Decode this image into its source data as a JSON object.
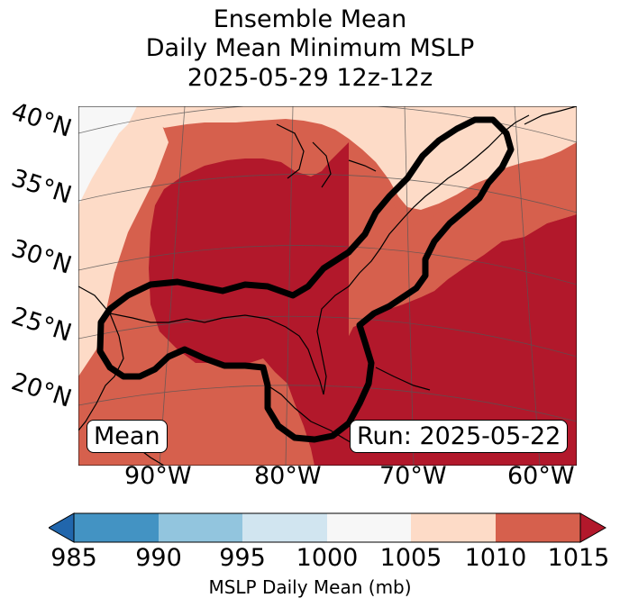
{
  "title": {
    "line1": "Ensemble Mean",
    "line2": "Daily Mean Minimum MSLP",
    "line3": "2025-05-29 12z-12z"
  },
  "map": {
    "latitude_labels": [
      "40°N",
      "35°N",
      "30°N",
      "25°N",
      "20°N"
    ],
    "longitude_labels": [
      "90°W",
      "80°W",
      "70°W",
      "60°W"
    ],
    "mean_box": "Mean",
    "run_box": "Run: 2025-05-22",
    "colors": {
      "lt1005": "#f7f7f7",
      "c1005_1010": "#fddbc7",
      "c1010_1015": "#d6604d",
      "gt1015": "#b2182b"
    }
  },
  "colorbar": {
    "label": "MSLP Daily Mean (mb)",
    "ticks": [
      "985",
      "990",
      "995",
      "1000",
      "1005",
      "1010",
      "1015"
    ],
    "colors": [
      "#2166ac",
      "#4393c3",
      "#92c5de",
      "#d1e5f0",
      "#f7f7f7",
      "#fddbc7",
      "#d6604d",
      "#b2182b"
    ]
  }
}
